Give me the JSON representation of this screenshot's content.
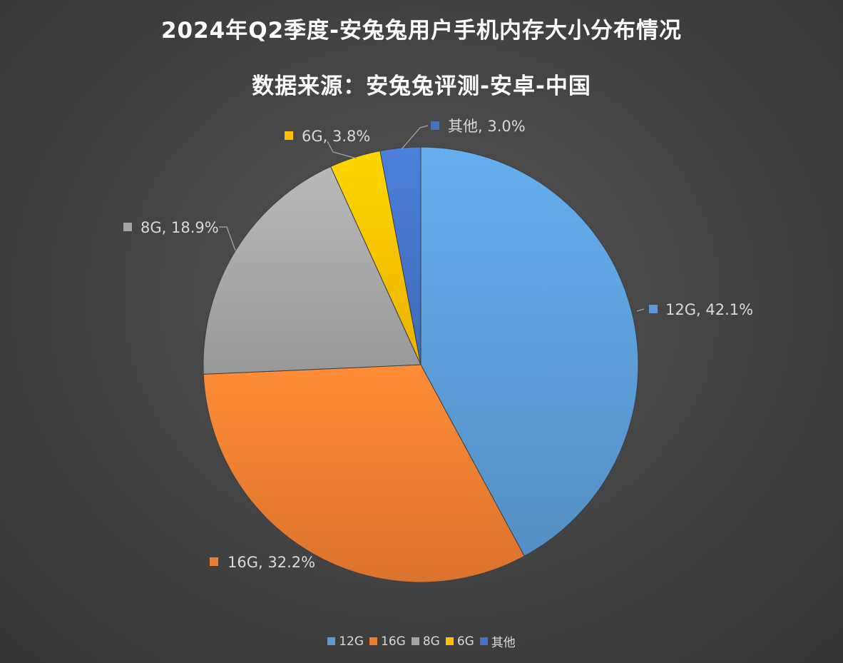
{
  "chart_data": {
    "type": "pie",
    "title": "2024年Q2季度-安兔兔用户手机内存大小分布情况",
    "subtitle": "数据来源：安兔兔评测-安卓-中国",
    "categories": [
      "12G",
      "16G",
      "8G",
      "6G",
      "其他"
    ],
    "values": [
      42.1,
      32.2,
      18.9,
      3.8,
      3.0
    ],
    "unit": "%",
    "data_labels": [
      "12G, 42.1%",
      "16G, 32.2%",
      "8G, 18.9%",
      "6G, 3.8%",
      "其他, 3.0%"
    ],
    "colors": [
      "#5b9bd5",
      "#ed7d31",
      "#a5a5a5",
      "#ffc000",
      "#4472c4"
    ],
    "start_angle_deg": 0,
    "direction": "clockwise",
    "legend_position": "bottom"
  }
}
